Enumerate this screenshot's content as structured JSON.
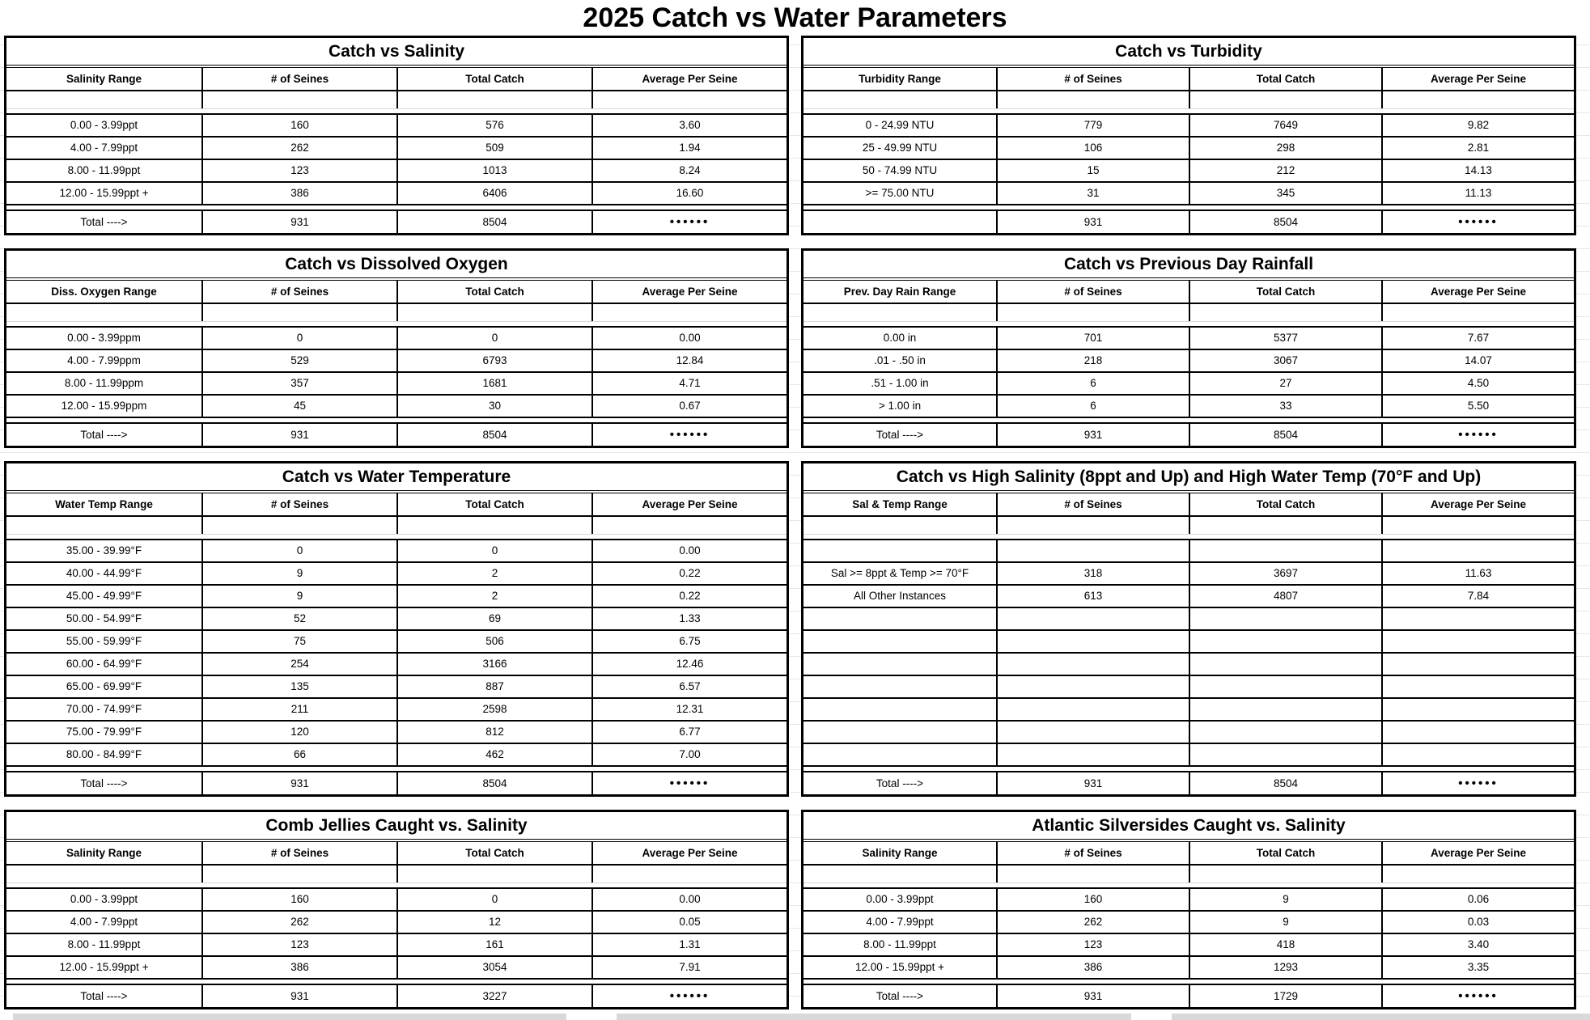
{
  "page": {
    "title": "2025 Catch vs Water Parameters"
  },
  "colors": {
    "border": "#000000",
    "gridline": "#e7e7e7",
    "bottom_strip": "#d9d9d9",
    "text": "#000000",
    "background": "#ffffff"
  },
  "shared": {
    "total_label": "Total ---->",
    "total_dots_label": "••••••"
  },
  "tables": [
    {
      "id": "catch-vs-salinity",
      "title": "Catch vs Salinity",
      "columns": [
        "Salinity Range",
        "# of Seines",
        "Total Catch",
        "Average Per Seine"
      ],
      "rows": [
        [
          "0.00 - 3.99ppt",
          "160",
          "576",
          "3.60"
        ],
        [
          "4.00 - 7.99ppt",
          "262",
          "509",
          "1.94"
        ],
        [
          "8.00 - 11.99ppt",
          "123",
          "1013",
          "8.24"
        ],
        [
          "12.00 - 15.99ppt +",
          "386",
          "6406",
          "16.60"
        ]
      ],
      "total": [
        "Total ---->",
        "931",
        "8504",
        "••••••"
      ]
    },
    {
      "id": "catch-vs-turbidity",
      "title": "Catch vs Turbidity",
      "columns": [
        "Turbidity Range",
        "# of Seines",
        "Total Catch",
        "Average Per Seine"
      ],
      "rows": [
        [
          "0 - 24.99 NTU",
          "779",
          "7649",
          "9.82"
        ],
        [
          "25 - 49.99 NTU",
          "106",
          "298",
          "2.81"
        ],
        [
          "50 - 74.99 NTU",
          "15",
          "212",
          "14.13"
        ],
        [
          ">= 75.00 NTU",
          "31",
          "345",
          "11.13"
        ]
      ],
      "total": [
        "",
        "931",
        "8504",
        "••••••"
      ]
    },
    {
      "id": "catch-vs-dissolved-oxygen",
      "title": "Catch vs Dissolved Oxygen",
      "columns": [
        "Diss. Oxygen Range",
        "# of Seines",
        "Total Catch",
        "Average Per Seine"
      ],
      "rows": [
        [
          "0.00 - 3.99ppm",
          "0",
          "0",
          "0.00"
        ],
        [
          "4.00 - 7.99ppm",
          "529",
          "6793",
          "12.84"
        ],
        [
          "8.00 - 11.99ppm",
          "357",
          "1681",
          "4.71"
        ],
        [
          "12.00 - 15.99ppm",
          "45",
          "30",
          "0.67"
        ]
      ],
      "total": [
        "Total ---->",
        "931",
        "8504",
        "••••••"
      ]
    },
    {
      "id": "catch-vs-previous-day-rainfall",
      "title": "Catch vs Previous Day Rainfall",
      "columns": [
        "Prev. Day Rain Range",
        "# of Seines",
        "Total Catch",
        "Average Per Seine"
      ],
      "rows": [
        [
          "0.00 in",
          "701",
          "5377",
          "7.67"
        ],
        [
          ".01 - .50 in",
          "218",
          "3067",
          "14.07"
        ],
        [
          ".51 - 1.00 in",
          "6",
          "27",
          "4.50"
        ],
        [
          "> 1.00 in",
          "6",
          "33",
          "5.50"
        ]
      ],
      "total": [
        "Total ---->",
        "931",
        "8504",
        "••••••"
      ]
    },
    {
      "id": "catch-vs-water-temperature",
      "title": "Catch vs Water Temperature",
      "columns": [
        "Water Temp Range",
        "# of Seines",
        "Total Catch",
        "Average Per Seine"
      ],
      "rows": [
        [
          "35.00 - 39.99°F",
          "0",
          "0",
          "0.00"
        ],
        [
          "40.00 - 44.99°F",
          "9",
          "2",
          "0.22"
        ],
        [
          "45.00 - 49.99°F",
          "9",
          "2",
          "0.22"
        ],
        [
          "50.00 - 54.99°F",
          "52",
          "69",
          "1.33"
        ],
        [
          "55.00 - 59.99°F",
          "75",
          "506",
          "6.75"
        ],
        [
          "60.00 - 64.99°F",
          "254",
          "3166",
          "12.46"
        ],
        [
          "65.00 - 69.99°F",
          "135",
          "887",
          "6.57"
        ],
        [
          "70.00 - 74.99°F",
          "211",
          "2598",
          "12.31"
        ],
        [
          "75.00 - 79.99°F",
          "120",
          "812",
          "6.77"
        ],
        [
          "80.00 - 84.99°F",
          "66",
          "462",
          "7.00"
        ]
      ],
      "total": [
        "Total ---->",
        "931",
        "8504",
        "••••••"
      ]
    },
    {
      "id": "catch-vs-high-salinity-high-temp",
      "title": "Catch vs High Salinity (8ppt and Up) and High Water Temp (70°F and Up)",
      "columns": [
        "Sal & Temp Range",
        "# of Seines",
        "Total Catch",
        "Average Per Seine"
      ],
      "rows": [
        [
          "",
          "",
          "",
          ""
        ],
        [
          "Sal >= 8ppt & Temp >= 70°F",
          "318",
          "3697",
          "11.63"
        ],
        [
          "All Other Instances",
          "613",
          "4807",
          "7.84"
        ],
        [
          "",
          "",
          "",
          ""
        ],
        [
          "",
          "",
          "",
          ""
        ],
        [
          "",
          "",
          "",
          ""
        ],
        [
          "",
          "",
          "",
          ""
        ],
        [
          "",
          "",
          "",
          ""
        ],
        [
          "",
          "",
          "",
          ""
        ],
        [
          "",
          "",
          "",
          ""
        ]
      ],
      "total": [
        "Total ---->",
        "931",
        "8504",
        "••••••"
      ]
    },
    {
      "id": "comb-jellies-caught-vs-salinity",
      "title": "Comb Jellies Caught vs. Salinity",
      "columns": [
        "Salinity Range",
        "# of Seines",
        "Total Catch",
        "Average Per Seine"
      ],
      "rows": [
        [
          "0.00 - 3.99ppt",
          "160",
          "0",
          "0.00"
        ],
        [
          "4.00 - 7.99ppt",
          "262",
          "12",
          "0.05"
        ],
        [
          "8.00 - 11.99ppt",
          "123",
          "161",
          "1.31"
        ],
        [
          "12.00 - 15.99ppt +",
          "386",
          "3054",
          "7.91"
        ]
      ],
      "total": [
        "Total ---->",
        "931",
        "3227",
        "••••••"
      ]
    },
    {
      "id": "atlantic-silversides-caught-vs-salinity",
      "title": "Atlantic Silversides Caught vs. Salinity",
      "columns": [
        "Salinity Range",
        "# of Seines",
        "Total Catch",
        "Average Per Seine"
      ],
      "rows": [
        [
          "0.00 - 3.99ppt",
          "160",
          "9",
          "0.06"
        ],
        [
          "4.00 - 7.99ppt",
          "262",
          "9",
          "0.03"
        ],
        [
          "8.00 - 11.99ppt",
          "123",
          "418",
          "3.40"
        ],
        [
          "12.00 - 15.99ppt +",
          "386",
          "1293",
          "3.35"
        ]
      ],
      "total": [
        "Total ---->",
        "931",
        "1729",
        "••••••"
      ]
    }
  ]
}
